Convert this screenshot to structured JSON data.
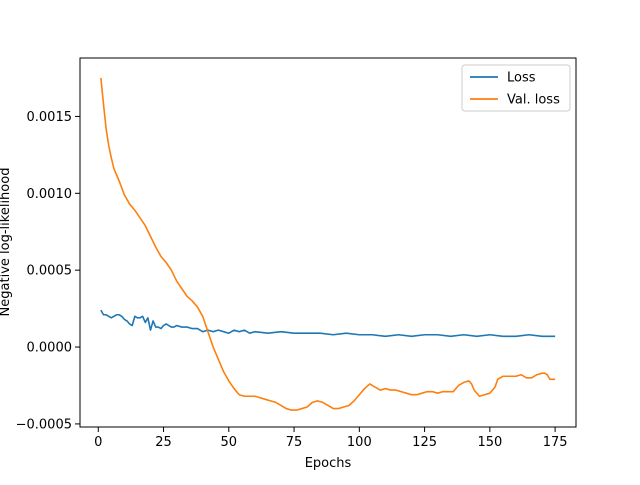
{
  "chart_data": {
    "type": "line",
    "title": "",
    "xlabel": "Epochs",
    "ylabel": "Negative log-likelihood",
    "xlim": [
      -7,
      183
    ],
    "ylim": [
      -0.00052,
      0.00188
    ],
    "x_ticks": [
      0,
      25,
      50,
      75,
      100,
      125,
      150,
      175
    ],
    "x_tick_labels": [
      "0",
      "25",
      "50",
      "75",
      "100",
      "125",
      "150",
      "175"
    ],
    "y_ticks": [
      -0.0005,
      0.0,
      0.0005,
      0.001,
      0.0015
    ],
    "y_tick_labels": [
      "−0.0005",
      "0.0000",
      "0.0005",
      "0.0010",
      "0.0015"
    ],
    "grid": false,
    "legend_position": "top-right",
    "series": [
      {
        "name": "Loss",
        "color": "#1f77b4",
        "points": [
          [
            1,
            0.00024
          ],
          [
            2,
            0.00021
          ],
          [
            3,
            0.00021
          ],
          [
            4,
            0.0002
          ],
          [
            5,
            0.00019
          ],
          [
            6,
            0.0002
          ],
          [
            7,
            0.00021
          ],
          [
            8,
            0.00021
          ],
          [
            9,
            0.0002
          ],
          [
            10,
            0.00018
          ],
          [
            11,
            0.00017
          ],
          [
            12,
            0.00015
          ],
          [
            13,
            0.00014
          ],
          [
            14,
            0.0002
          ],
          [
            15,
            0.00019
          ],
          [
            16,
            0.00019
          ],
          [
            17,
            0.0002
          ],
          [
            18,
            0.00016
          ],
          [
            19,
            0.00019
          ],
          [
            20,
            0.00011
          ],
          [
            21,
            0.00017
          ],
          [
            22,
            0.00013
          ],
          [
            23,
            0.00013
          ],
          [
            24,
            0.00012
          ],
          [
            25,
            0.00014
          ],
          [
            26,
            0.00015
          ],
          [
            27,
            0.00014
          ],
          [
            28,
            0.00013
          ],
          [
            29,
            0.00013
          ],
          [
            30,
            0.00014
          ],
          [
            32,
            0.00013
          ],
          [
            34,
            0.00013
          ],
          [
            36,
            0.00012
          ],
          [
            38,
            0.00012
          ],
          [
            40,
            0.0001
          ],
          [
            42,
            0.00011
          ],
          [
            44,
            0.0001
          ],
          [
            46,
            0.00011
          ],
          [
            48,
            0.0001
          ],
          [
            50,
            9e-05
          ],
          [
            52,
            0.00011
          ],
          [
            54,
            0.0001
          ],
          [
            56,
            0.00011
          ],
          [
            58,
            9e-05
          ],
          [
            60,
            0.0001
          ],
          [
            65,
            9e-05
          ],
          [
            70,
            0.0001
          ],
          [
            75,
            9e-05
          ],
          [
            80,
            9e-05
          ],
          [
            85,
            9e-05
          ],
          [
            90,
            8e-05
          ],
          [
            95,
            9e-05
          ],
          [
            100,
            8e-05
          ],
          [
            105,
            8e-05
          ],
          [
            110,
            7e-05
          ],
          [
            115,
            8e-05
          ],
          [
            120,
            7e-05
          ],
          [
            125,
            8e-05
          ],
          [
            130,
            8e-05
          ],
          [
            135,
            7e-05
          ],
          [
            140,
            8e-05
          ],
          [
            145,
            7e-05
          ],
          [
            150,
            8e-05
          ],
          [
            155,
            7e-05
          ],
          [
            160,
            7e-05
          ],
          [
            165,
            8e-05
          ],
          [
            170,
            7e-05
          ],
          [
            175,
            7e-05
          ]
        ]
      },
      {
        "name": "Val. loss",
        "color": "#ff7f0e",
        "points": [
          [
            1,
            0.00175
          ],
          [
            2,
            0.00158
          ],
          [
            3,
            0.00142
          ],
          [
            4,
            0.00131
          ],
          [
            5,
            0.00123
          ],
          [
            6,
            0.00116
          ],
          [
            8,
            0.00108
          ],
          [
            10,
            0.00099
          ],
          [
            12,
            0.00093
          ],
          [
            14,
            0.00089
          ],
          [
            16,
            0.00084
          ],
          [
            18,
            0.00079
          ],
          [
            20,
            0.00072
          ],
          [
            22,
            0.00065
          ],
          [
            24,
            0.00059
          ],
          [
            26,
            0.00055
          ],
          [
            28,
            0.0005
          ],
          [
            30,
            0.00043
          ],
          [
            32,
            0.00038
          ],
          [
            34,
            0.00033
          ],
          [
            36,
            0.0003
          ],
          [
            38,
            0.00026
          ],
          [
            40,
            0.0002
          ],
          [
            42,
            0.0001
          ],
          [
            44,
            0.0
          ],
          [
            46,
            -8e-05
          ],
          [
            48,
            -0.00016
          ],
          [
            50,
            -0.00022
          ],
          [
            52,
            -0.00027
          ],
          [
            54,
            -0.00031
          ],
          [
            56,
            -0.00032
          ],
          [
            58,
            -0.00032
          ],
          [
            60,
            -0.00032
          ],
          [
            62,
            -0.00033
          ],
          [
            64,
            -0.00034
          ],
          [
            66,
            -0.00035
          ],
          [
            68,
            -0.00036
          ],
          [
            70,
            -0.00038
          ],
          [
            72,
            -0.0004
          ],
          [
            74,
            -0.00041
          ],
          [
            76,
            -0.00041
          ],
          [
            78,
            -0.0004
          ],
          [
            80,
            -0.00039
          ],
          [
            82,
            -0.00036
          ],
          [
            84,
            -0.00035
          ],
          [
            86,
            -0.00036
          ],
          [
            88,
            -0.00038
          ],
          [
            90,
            -0.0004
          ],
          [
            92,
            -0.0004
          ],
          [
            94,
            -0.00039
          ],
          [
            96,
            -0.00038
          ],
          [
            98,
            -0.00035
          ],
          [
            100,
            -0.00031
          ],
          [
            102,
            -0.00027
          ],
          [
            104,
            -0.00024
          ],
          [
            106,
            -0.00026
          ],
          [
            108,
            -0.00028
          ],
          [
            110,
            -0.00027
          ],
          [
            112,
            -0.00028
          ],
          [
            114,
            -0.00028
          ],
          [
            116,
            -0.00029
          ],
          [
            118,
            -0.0003
          ],
          [
            120,
            -0.00031
          ],
          [
            122,
            -0.00031
          ],
          [
            124,
            -0.0003
          ],
          [
            126,
            -0.00029
          ],
          [
            128,
            -0.00029
          ],
          [
            130,
            -0.0003
          ],
          [
            132,
            -0.00029
          ],
          [
            134,
            -0.00029
          ],
          [
            136,
            -0.00029
          ],
          [
            138,
            -0.00025
          ],
          [
            140,
            -0.00023
          ],
          [
            142,
            -0.00022
          ],
          [
            143,
            -0.00024
          ],
          [
            144,
            -0.00028
          ],
          [
            146,
            -0.00032
          ],
          [
            148,
            -0.00031
          ],
          [
            150,
            -0.0003
          ],
          [
            152,
            -0.00026
          ],
          [
            153,
            -0.00021
          ],
          [
            155,
            -0.00019
          ],
          [
            158,
            -0.00019
          ],
          [
            160,
            -0.00019
          ],
          [
            162,
            -0.00018
          ],
          [
            164,
            -0.0002
          ],
          [
            166,
            -0.0002
          ],
          [
            168,
            -0.00018
          ],
          [
            170,
            -0.00017
          ],
          [
            171,
            -0.00017
          ],
          [
            172,
            -0.00018
          ],
          [
            173,
            -0.00021
          ],
          [
            175,
            -0.00021
          ]
        ]
      }
    ]
  }
}
